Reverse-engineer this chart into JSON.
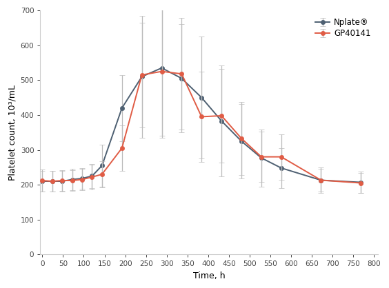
{
  "gp_x": [
    0,
    24,
    48,
    72,
    96,
    120,
    144,
    192,
    240,
    288,
    336,
    384,
    432,
    480,
    528,
    576,
    672,
    768
  ],
  "gp_y": [
    212,
    210,
    212,
    212,
    215,
    222,
    230,
    305,
    515,
    525,
    518,
    395,
    398,
    333,
    280,
    280,
    213,
    205
  ],
  "gp_yerr_lo": [
    32,
    30,
    30,
    30,
    30,
    35,
    38,
    65,
    150,
    185,
    160,
    130,
    135,
    105,
    72,
    65,
    32,
    28
  ],
  "gp_yerr_hi": [
    32,
    30,
    30,
    30,
    30,
    35,
    38,
    65,
    150,
    185,
    160,
    130,
    135,
    105,
    72,
    65,
    32,
    28
  ],
  "np_x": [
    0,
    24,
    48,
    72,
    96,
    120,
    144,
    192,
    240,
    288,
    336,
    384,
    432,
    480,
    528,
    576,
    672,
    768
  ],
  "np_y": [
    210,
    210,
    210,
    215,
    218,
    225,
    255,
    420,
    510,
    535,
    505,
    450,
    383,
    325,
    277,
    248,
    213,
    207
  ],
  "np_yerr_lo": [
    30,
    30,
    30,
    30,
    30,
    35,
    60,
    95,
    175,
    200,
    155,
    175,
    160,
    107,
    82,
    57,
    37,
    30
  ],
  "np_yerr_hi": [
    30,
    30,
    30,
    30,
    30,
    35,
    60,
    95,
    175,
    200,
    155,
    175,
    160,
    107,
    82,
    57,
    37,
    30
  ],
  "gp_color": "#E05C45",
  "np_color": "#4E6072",
  "gp_label": "GP40141",
  "np_label": "Nplate®",
  "xlabel": "Time, h",
  "ylabel": "Platelet count, 10³/mL",
  "xlim": [
    -5,
    810
  ],
  "ylim": [
    0,
    700
  ],
  "xticks": [
    0,
    50,
    100,
    150,
    200,
    250,
    300,
    350,
    400,
    450,
    500,
    550,
    600,
    650,
    700,
    750,
    800
  ],
  "yticks": [
    0,
    100,
    200,
    300,
    400,
    500,
    600,
    700
  ],
  "background_color": "#ffffff"
}
